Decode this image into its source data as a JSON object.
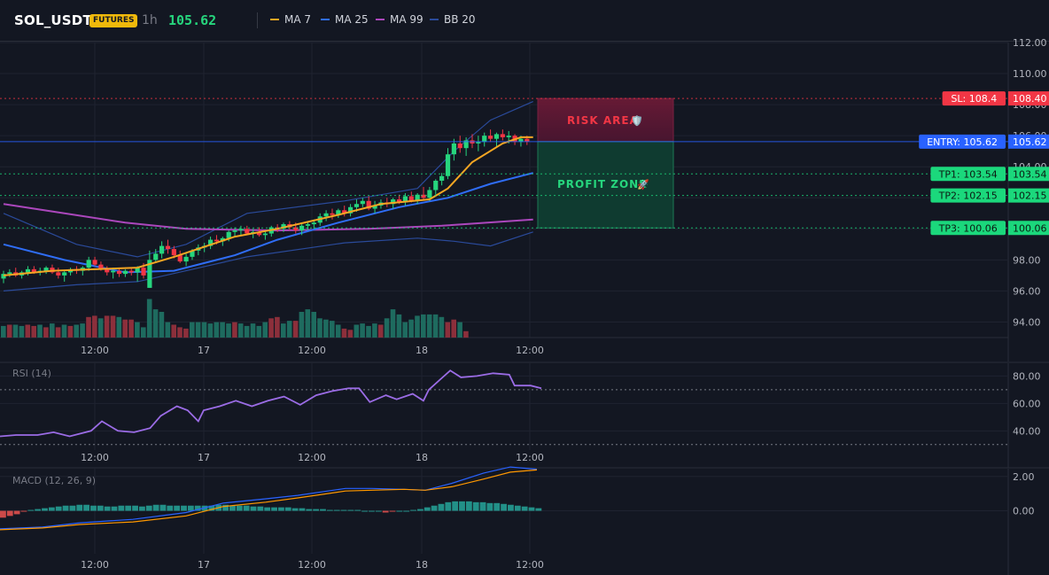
{
  "header": {
    "symbol": "SOL_USDT",
    "badge": "FUTURES",
    "interval": "1h",
    "price": "105.62",
    "legend": [
      {
        "label": "MA 7",
        "color": "#f5a623"
      },
      {
        "label": "MA 25",
        "color": "#2f6df6"
      },
      {
        "label": "MA 99",
        "color": "#ab47bc"
      },
      {
        "label": "BB 20",
        "color": "#2a4a9a"
      }
    ]
  },
  "chart_data": {
    "type": "candlestick",
    "price_axis": {
      "ticks": [
        "112.00",
        "110.00",
        "108.00",
        "106.00",
        "104.00",
        "102.00",
        "100.00",
        "98.00",
        "96.00",
        "94.00"
      ],
      "ylim": [
        93,
        112
      ]
    },
    "time_axis": {
      "labels": [
        "12:00",
        "17",
        "12:00",
        "18",
        "12:00"
      ]
    },
    "candles": [
      [
        96.8,
        97.3,
        96.5,
        97.1
      ],
      [
        97.1,
        97.4,
        96.9,
        97.2
      ],
      [
        97.2,
        97.5,
        96.9,
        97.0
      ],
      [
        97.0,
        97.3,
        96.8,
        97.2
      ],
      [
        97.2,
        97.6,
        97.0,
        97.4
      ],
      [
        97.4,
        97.6,
        97.1,
        97.2
      ],
      [
        97.2,
        97.5,
        97.0,
        97.3
      ],
      [
        97.3,
        97.6,
        97.1,
        97.5
      ],
      [
        97.5,
        97.7,
        97.1,
        97.2
      ],
      [
        97.2,
        97.5,
        96.8,
        97.0
      ],
      [
        97.0,
        97.3,
        96.6,
        97.2
      ],
      [
        97.2,
        97.5,
        97.0,
        97.4
      ],
      [
        97.4,
        97.6,
        97.1,
        97.3
      ],
      [
        97.3,
        97.6,
        97.0,
        97.5
      ],
      [
        97.5,
        98.2,
        97.3,
        98.0
      ],
      [
        98.0,
        98.2,
        97.6,
        97.7
      ],
      [
        97.7,
        97.9,
        97.3,
        97.4
      ],
      [
        97.4,
        97.6,
        97.0,
        97.2
      ],
      [
        97.2,
        97.5,
        96.8,
        97.3
      ],
      [
        97.3,
        97.5,
        96.9,
        97.1
      ],
      [
        97.1,
        97.4,
        96.9,
        97.3
      ],
      [
        97.3,
        97.5,
        97.0,
        97.2
      ],
      [
        97.2,
        97.6,
        96.6,
        97.5
      ],
      [
        97.5,
        97.8,
        96.8,
        97.0
      ],
      [
        96.2,
        98.6,
        96.2,
        98.0
      ],
      [
        98.0,
        98.7,
        97.8,
        98.4
      ],
      [
        98.4,
        99.2,
        98.1,
        98.9
      ],
      [
        98.9,
        99.3,
        98.4,
        98.7
      ],
      [
        98.7,
        98.9,
        98.1,
        98.3
      ],
      [
        98.3,
        98.6,
        97.8,
        97.9
      ],
      [
        97.9,
        98.4,
        97.6,
        98.2
      ],
      [
        98.2,
        98.7,
        98.0,
        98.6
      ],
      [
        98.6,
        99.0,
        98.3,
        98.8
      ],
      [
        98.8,
        99.1,
        98.5,
        98.9
      ],
      [
        98.9,
        99.5,
        98.7,
        99.3
      ],
      [
        99.3,
        99.6,
        99.0,
        99.2
      ],
      [
        99.2,
        99.5,
        98.9,
        99.4
      ],
      [
        99.4,
        99.9,
        99.2,
        99.8
      ],
      [
        99.8,
        100.1,
        99.5,
        99.9
      ],
      [
        99.9,
        100.2,
        99.6,
        100.0
      ],
      [
        100.0,
        100.2,
        99.6,
        99.7
      ],
      [
        99.7,
        100.0,
        99.4,
        99.8
      ],
      [
        99.8,
        100.1,
        99.5,
        99.6
      ],
      [
        99.6,
        99.9,
        99.3,
        99.7
      ],
      [
        99.7,
        100.2,
        99.5,
        100.1
      ],
      [
        100.1,
        100.3,
        99.8,
        100.0
      ],
      [
        100.0,
        100.4,
        99.8,
        100.3
      ],
      [
        100.3,
        100.5,
        99.9,
        100.1
      ],
      [
        100.1,
        100.4,
        99.7,
        99.9
      ],
      [
        99.9,
        100.3,
        99.6,
        100.2
      ],
      [
        100.2,
        100.5,
        99.9,
        100.3
      ],
      [
        100.3,
        100.6,
        100.0,
        100.4
      ],
      [
        100.4,
        101.0,
        100.2,
        100.8
      ],
      [
        100.8,
        101.2,
        100.5,
        101.0
      ],
      [
        101.0,
        101.3,
        100.6,
        100.9
      ],
      [
        100.9,
        101.3,
        100.7,
        101.2
      ],
      [
        101.2,
        101.5,
        100.8,
        101.0
      ],
      [
        101.0,
        101.6,
        100.8,
        101.4
      ],
      [
        101.4,
        101.9,
        101.1,
        101.6
      ],
      [
        101.6,
        102.0,
        101.4,
        101.8
      ],
      [
        101.8,
        102.1,
        101.2,
        101.3
      ],
      [
        101.3,
        101.8,
        101.0,
        101.5
      ],
      [
        101.5,
        101.9,
        101.3,
        101.7
      ],
      [
        101.7,
        102.0,
        101.4,
        101.6
      ],
      [
        101.6,
        102.0,
        101.3,
        101.9
      ],
      [
        101.9,
        102.2,
        101.6,
        101.7
      ],
      [
        101.7,
        102.3,
        101.5,
        102.1
      ],
      [
        102.1,
        102.4,
        101.7,
        101.8
      ],
      [
        101.8,
        102.3,
        101.6,
        102.2
      ],
      [
        102.2,
        102.7,
        101.9,
        102.0
      ],
      [
        102.0,
        102.7,
        101.8,
        102.5
      ],
      [
        102.5,
        103.2,
        102.2,
        103.1
      ],
      [
        103.1,
        103.6,
        102.8,
        103.4
      ],
      [
        103.4,
        105.2,
        103.2,
        104.8
      ],
      [
        104.8,
        105.8,
        104.4,
        105.5
      ],
      [
        105.5,
        106.0,
        104.9,
        105.2
      ],
      [
        105.2,
        105.9,
        104.7,
        105.7
      ],
      [
        105.7,
        106.1,
        105.2,
        105.5
      ],
      [
        105.5,
        106.0,
        105.0,
        105.6
      ],
      [
        105.6,
        106.2,
        105.3,
        106.0
      ],
      [
        106.0,
        106.4,
        105.6,
        105.8
      ],
      [
        105.8,
        106.2,
        105.3,
        106.1
      ],
      [
        106.1,
        106.4,
        105.7,
        105.9
      ],
      [
        105.9,
        106.3,
        105.5,
        106.0
      ],
      [
        106.0,
        106.1,
        105.4,
        105.6
      ],
      [
        105.6,
        106.0,
        105.3,
        105.8
      ],
      [
        105.8,
        106.0,
        105.4,
        105.62
      ]
    ],
    "volume": [
      "g",
      9,
      "r",
      10,
      "g",
      10,
      "g",
      9,
      "r",
      10,
      "r",
      9,
      "g",
      10,
      "r",
      8,
      "g",
      11,
      "r",
      8,
      "g",
      10,
      "r",
      9,
      "g",
      10,
      "g",
      11,
      "r",
      16,
      "r",
      17,
      "g",
      15,
      "r",
      17,
      "r",
      17,
      "g",
      16,
      "r",
      14,
      "r",
      14,
      "g",
      12,
      "g",
      8,
      "g",
      30,
      "g",
      22,
      "g",
      20,
      "g",
      12,
      "r",
      10,
      "r",
      8,
      "r",
      7,
      "g",
      12,
      "g",
      12,
      "g",
      12,
      "g",
      11,
      "g",
      12,
      "g",
      12,
      "g",
      11,
      "r",
      12,
      "g",
      11,
      "g",
      9,
      "g",
      11,
      "g",
      9,
      "g",
      12,
      "r",
      15,
      "r",
      16,
      "g",
      11,
      "g",
      13,
      "r",
      13,
      "g",
      20,
      "g",
      22,
      "g",
      20,
      "g",
      15,
      "g",
      14,
      "g",
      13,
      "g",
      10,
      "r",
      7,
      "r",
      6,
      "g",
      10,
      "g",
      11,
      "g",
      9,
      "g",
      11,
      "r",
      10,
      "g",
      15,
      "g",
      22,
      "g",
      18,
      "g",
      12,
      "g",
      14,
      "g",
      17,
      "g",
      18,
      "g",
      18,
      "g",
      18,
      "g",
      16,
      "r",
      12,
      "r",
      14,
      "g",
      12,
      "r",
      5
    ],
    "ma7": [
      [
        0,
        97.0
      ],
      [
        8,
        97.3
      ],
      [
        15,
        97.4
      ],
      [
        22,
        97.5
      ],
      [
        28,
        98.2
      ],
      [
        38,
        99.5
      ],
      [
        45,
        100.0
      ],
      [
        55,
        100.9
      ],
      [
        62,
        101.6
      ],
      [
        70,
        101.9
      ],
      [
        73,
        102.6
      ],
      [
        77,
        104.3
      ],
      [
        82,
        105.5
      ],
      [
        85,
        105.9
      ],
      [
        87,
        105.9
      ]
    ],
    "ma25": [
      [
        0,
        99.0
      ],
      [
        10,
        98.0
      ],
      [
        20,
        97.2
      ],
      [
        28,
        97.3
      ],
      [
        38,
        98.3
      ],
      [
        45,
        99.3
      ],
      [
        55,
        100.4
      ],
      [
        65,
        101.4
      ],
      [
        73,
        102.0
      ],
      [
        80,
        102.9
      ],
      [
        87,
        103.6
      ]
    ],
    "ma99": [
      [
        0,
        101.6
      ],
      [
        10,
        101.0
      ],
      [
        20,
        100.4
      ],
      [
        30,
        100.0
      ],
      [
        45,
        99.9
      ],
      [
        60,
        100.0
      ],
      [
        72,
        100.2
      ],
      [
        87,
        100.6
      ]
    ],
    "bb_upper": [
      [
        0,
        101.0
      ],
      [
        12,
        99.0
      ],
      [
        22,
        98.2
      ],
      [
        30,
        99.0
      ],
      [
        40,
        101.0
      ],
      [
        56,
        101.8
      ],
      [
        68,
        102.6
      ],
      [
        74,
        105.0
      ],
      [
        80,
        107.0
      ],
      [
        87,
        108.2
      ]
    ],
    "bb_lower": [
      [
        0,
        96.0
      ],
      [
        12,
        96.4
      ],
      [
        22,
        96.6
      ],
      [
        30,
        97.3
      ],
      [
        40,
        98.2
      ],
      [
        56,
        99.1
      ],
      [
        68,
        99.4
      ],
      [
        74,
        99.2
      ],
      [
        80,
        98.9
      ],
      [
        87,
        99.8
      ]
    ],
    "levels": [
      {
        "label": "SL: 108.4",
        "value": 108.4,
        "value_text": "108.40",
        "color": "#f23645"
      },
      {
        "label": "ENTRY: 105.62",
        "value": 105.62,
        "value_text": "105.62",
        "color": "#2962ff"
      },
      {
        "label": "TP1: 103.54",
        "value": 103.54,
        "value_text": "103.54",
        "color": "#1bd87c"
      },
      {
        "label": "TP2: 102.15",
        "value": 102.15,
        "value_text": "102.15",
        "color": "#1bd87c"
      },
      {
        "label": "TP3: 100.06",
        "value": 100.06,
        "value_text": "100.06",
        "color": "#1bd87c"
      }
    ],
    "zones": {
      "risk": "RISK AREA",
      "risk_icon": "🛡️",
      "profit": "PROFIT ZONE",
      "profit_icon": "🚀"
    },
    "rsi": {
      "title": "RSI (14)",
      "ticks": [
        "80.00",
        "60.00",
        "40.00"
      ],
      "ylim": [
        26,
        88
      ],
      "bands": [
        70,
        30
      ],
      "values": [
        [
          0,
          36
        ],
        [
          3,
          37
        ],
        [
          7,
          37
        ],
        [
          10,
          39
        ],
        [
          13,
          36
        ],
        [
          17,
          40
        ],
        [
          19,
          47
        ],
        [
          22,
          40
        ],
        [
          25,
          39
        ],
        [
          28,
          42
        ],
        [
          30,
          51
        ],
        [
          33,
          58
        ],
        [
          35,
          55
        ],
        [
          37,
          47
        ],
        [
          38,
          55
        ],
        [
          41,
          58
        ],
        [
          44,
          62
        ],
        [
          47,
          58
        ],
        [
          50,
          62
        ],
        [
          53,
          65
        ],
        [
          56,
          59
        ],
        [
          59,
          66
        ],
        [
          62,
          69
        ],
        [
          65,
          71
        ],
        [
          67,
          71
        ],
        [
          69,
          61
        ],
        [
          72,
          66
        ],
        [
          74,
          63
        ],
        [
          77,
          67
        ],
        [
          79,
          62
        ],
        [
          80,
          70
        ],
        [
          82,
          77
        ],
        [
          84,
          84
        ],
        [
          86,
          79
        ],
        [
          89,
          80
        ],
        [
          92,
          82
        ],
        [
          95,
          81
        ],
        [
          96,
          73
        ],
        [
          99,
          73
        ],
        [
          101,
          71
        ]
      ]
    },
    "macd": {
      "title": "MACD (12, 26, 9)",
      "ticks": [
        "2.00",
        "0.00"
      ],
      "ylim": [
        -2.5,
        2.4
      ],
      "hist": [
        -0.4,
        -0.3,
        -0.2,
        -0.05,
        0.05,
        0.1,
        0.15,
        0.2,
        0.25,
        0.3,
        0.3,
        0.35,
        0.35,
        0.3,
        0.3,
        0.25,
        0.25,
        0.3,
        0.3,
        0.3,
        0.25,
        0.3,
        0.35,
        0.35,
        0.3,
        0.3,
        0.3,
        0.3,
        0.3,
        0.3,
        0.3,
        0.35,
        0.35,
        0.3,
        0.3,
        0.3,
        0.25,
        0.25,
        0.2,
        0.2,
        0.2,
        0.2,
        0.15,
        0.15,
        0.1,
        0.1,
        0.1,
        0.05,
        0.05,
        0.05,
        0.05,
        0.05,
        0.0,
        0.0,
        0.0,
        -0.1,
        -0.05,
        0.0,
        0.0,
        0.05,
        0.1,
        0.2,
        0.3,
        0.4,
        0.5,
        0.55,
        0.55,
        0.55,
        0.5,
        0.5,
        0.45,
        0.45,
        0.4,
        0.35,
        0.3,
        0.25,
        0.2,
        0.15
      ],
      "macd": [
        [
          0,
          -1.05
        ],
        [
          8,
          -0.95
        ],
        [
          15,
          -0.7
        ],
        [
          25,
          -0.5
        ],
        [
          35,
          -0.1
        ],
        [
          42,
          0.45
        ],
        [
          50,
          0.7
        ],
        [
          56,
          0.9
        ],
        [
          65,
          1.3
        ],
        [
          70,
          1.3
        ],
        [
          76,
          1.25
        ],
        [
          80,
          1.2
        ],
        [
          85,
          1.6
        ],
        [
          91,
          2.2
        ],
        [
          96,
          2.55
        ],
        [
          101,
          2.42
        ]
      ],
      "signal": [
        [
          0,
          -1.1
        ],
        [
          8,
          -1.0
        ],
        [
          15,
          -0.8
        ],
        [
          25,
          -0.65
        ],
        [
          35,
          -0.3
        ],
        [
          42,
          0.25
        ],
        [
          50,
          0.5
        ],
        [
          56,
          0.75
        ],
        [
          65,
          1.15
        ],
        [
          70,
          1.2
        ],
        [
          76,
          1.25
        ],
        [
          80,
          1.2
        ],
        [
          85,
          1.4
        ],
        [
          91,
          1.85
        ],
        [
          96,
          2.25
        ],
        [
          101,
          2.38
        ]
      ]
    }
  }
}
